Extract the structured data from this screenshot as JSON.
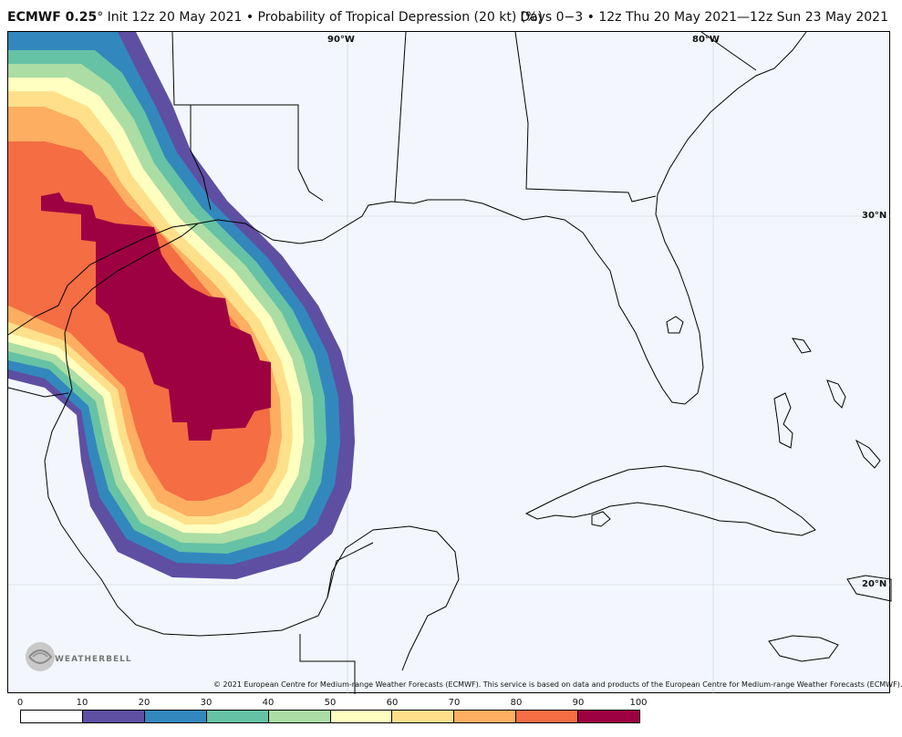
{
  "header": {
    "model": "ECMWF 0.25",
    "degree": "°",
    "title": " Init 12z 20 May 2021 • Probability of Tropical Depression (20 kt) (%)",
    "valid": "Days 0−3 • 12z Thu 20 May 2021—12z Sun 23 May 2021"
  },
  "map": {
    "lat_labels": [
      "30°N",
      "20°N"
    ],
    "lon_labels": [
      "90°W",
      "80°W"
    ]
  },
  "copyright": "© 2021 European Centre for Medium-range Weather Forecasts (ECMWF). This service is based on data and products of the European Centre for Medium-range Weather Forecasts (ECMWF).",
  "logo": {
    "text": "WEATHERBELL",
    "icon": "weatherbell-logo"
  },
  "colorbar": {
    "ticks": [
      "0",
      "10",
      "20",
      "30",
      "40",
      "50",
      "60",
      "70",
      "80",
      "90",
      "100"
    ],
    "colors": [
      "#ffffff",
      "#5e4fa2",
      "#3288bd",
      "#66c2a5",
      "#abdda4",
      "#ffffbf",
      "#fee08b",
      "#fdae61",
      "#f46d43",
      "#9e0142"
    ]
  }
}
